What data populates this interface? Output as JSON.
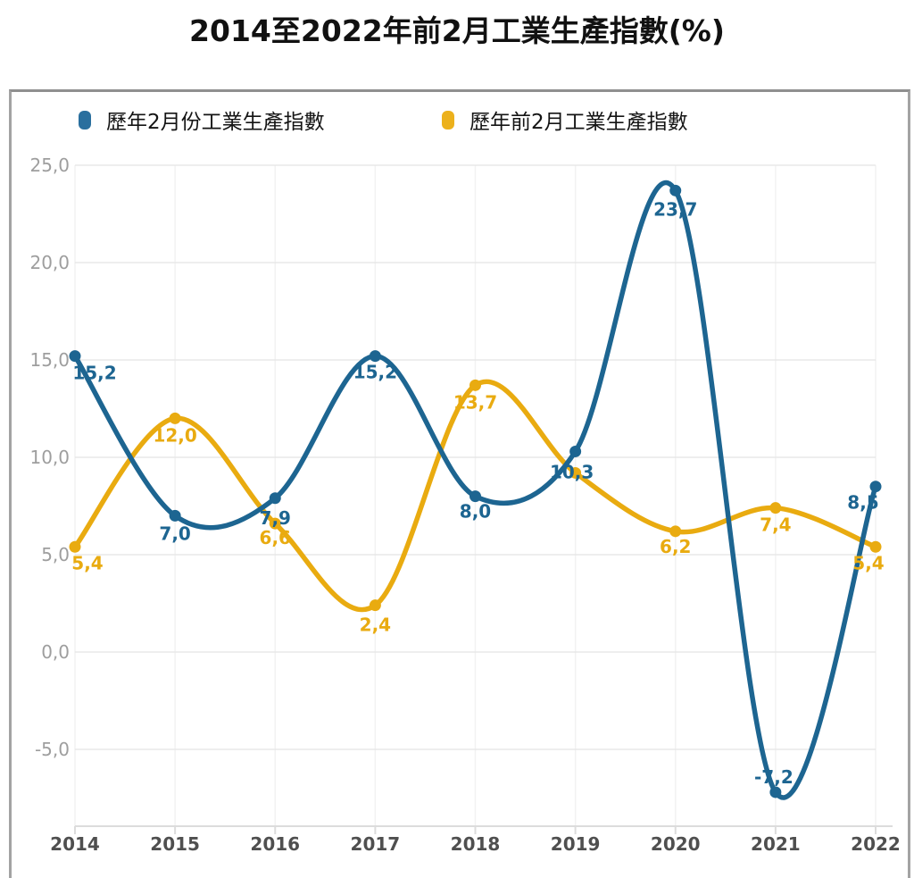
{
  "title": "2014至2022年前2月工業生產指數(%)",
  "legend": {
    "items": [
      {
        "label": "歷年2月份工業生產指數",
        "color": "#2a6f9e"
      },
      {
        "label": "歷年前2月工業生產指數",
        "color": "#ecb11c"
      }
    ]
  },
  "chart_data": {
    "type": "line",
    "categories": [
      "2014",
      "2015",
      "2016",
      "2017",
      "2018",
      "2019",
      "2020",
      "2021",
      "2022"
    ],
    "series": [
      {
        "name": "歷年2月份工業生產指數",
        "color": "#1d6591",
        "values": [
          15.2,
          7.0,
          7.9,
          15.2,
          8.0,
          10.3,
          23.7,
          -7.2,
          8.5
        ],
        "labels": [
          "15,2",
          "7,0",
          "7,9",
          "15,2",
          "8,0",
          "10,3",
          "23,7",
          "-7,2",
          "8,5"
        ],
        "label_offsets": [
          [
            22,
            26
          ],
          [
            0,
            27
          ],
          [
            0,
            29
          ],
          [
            0,
            25
          ],
          [
            0,
            24
          ],
          [
            -4,
            30
          ],
          [
            0,
            28
          ],
          [
            -2,
            -10
          ],
          [
            -14,
            25
          ]
        ]
      },
      {
        "name": "歷年前2月工業生產指數",
        "color": "#e9ab10",
        "values": [
          5.4,
          12.0,
          6.6,
          2.4,
          13.7,
          9.2,
          6.2,
          7.4,
          5.4
        ],
        "labels": [
          "5,4",
          "12,0",
          "6,6",
          "2,4",
          "13,7",
          "",
          "6,2",
          "7,4",
          "5,4"
        ],
        "label_offsets": [
          [
            14,
            25
          ],
          [
            0,
            26
          ],
          [
            0,
            23
          ],
          [
            0,
            29
          ],
          [
            0,
            26
          ],
          null,
          [
            0,
            24
          ],
          [
            0,
            26
          ],
          [
            -8,
            25
          ]
        ]
      }
    ],
    "title": "2014至2022年前2月工業生產指數(%)",
    "xlabel": "",
    "ylabel": "",
    "yticks": {
      "labels": [
        "25,0",
        "20,0",
        "15,0",
        "10,0",
        "5,0",
        "0,0",
        "-5,0"
      ],
      "values": [
        25,
        20,
        15,
        10,
        5,
        0,
        -5
      ]
    },
    "ylim": [
      -9,
      25.5
    ],
    "grid": true,
    "legend_position": "top"
  },
  "colors": {
    "h_grid": "#e8e8e8",
    "v_grid": "#f2f2f2",
    "axis": "#dcdcdc",
    "y_tick_label": "#9e9e9e",
    "x_tick_label": "#4f4f4f"
  }
}
